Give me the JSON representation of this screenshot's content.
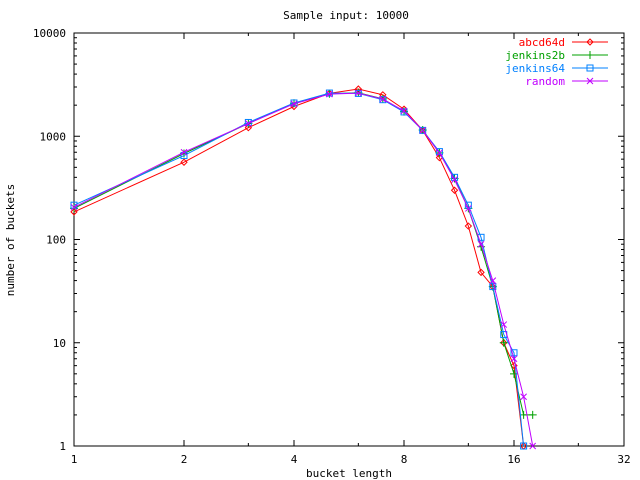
{
  "chart_data": {
    "type": "line",
    "title": "Sample input: 10000",
    "xlabel": "bucket length",
    "ylabel": "number of buckets",
    "x_scale": "log2",
    "y_scale": "log10",
    "xlim": [
      1,
      32
    ],
    "ylim": [
      1,
      10000
    ],
    "x_ticks": [
      1,
      2,
      4,
      8,
      16,
      32
    ],
    "x_tick_labels": [
      "1",
      "2",
      "4",
      "8",
      "16",
      "32"
    ],
    "y_ticks": [
      1,
      10,
      100,
      1000,
      10000
    ],
    "y_tick_labels": [
      "1",
      "10",
      "100",
      "1000",
      "10000"
    ],
    "grid": false,
    "legend_position": "top-right",
    "series": [
      {
        "name": "abcd64d",
        "color": "#ff0000",
        "marker": "diamond",
        "x": [
          1,
          2,
          3,
          4,
          5,
          6,
          7,
          8,
          9,
          10,
          11,
          12,
          13,
          14,
          15,
          16,
          17
        ],
        "y": [
          185,
          560,
          1210,
          1940,
          2600,
          2870,
          2520,
          1830,
          1140,
          620,
          300,
          135,
          48,
          35,
          10,
          6,
          1
        ]
      },
      {
        "name": "jenkins2b",
        "color": "#00a000",
        "marker": "plus",
        "x": [
          1,
          2,
          3,
          4,
          5,
          6,
          7,
          8,
          9,
          10,
          11,
          12,
          13,
          14,
          15,
          16,
          17,
          18
        ],
        "y": [
          200,
          680,
          1330,
          2090,
          2580,
          2640,
          2300,
          1730,
          1150,
          690,
          390,
          200,
          85,
          35,
          10,
          5,
          2,
          2
        ]
      },
      {
        "name": "jenkins64",
        "color": "#0080ff",
        "marker": "square",
        "x": [
          1,
          2,
          3,
          4,
          5,
          6,
          7,
          8,
          9,
          10,
          11,
          12,
          13,
          14,
          15,
          16,
          17
        ],
        "y": [
          215,
          650,
          1360,
          2100,
          2620,
          2600,
          2260,
          1720,
          1140,
          710,
          400,
          215,
          105,
          35,
          12,
          8,
          1
        ]
      },
      {
        "name": "random",
        "color": "#c000ff",
        "marker": "x",
        "x": [
          1,
          2,
          3,
          4,
          5,
          6,
          7,
          8,
          9,
          10,
          11,
          12,
          13,
          14,
          15,
          16,
          17,
          18
        ],
        "y": [
          205,
          700,
          1330,
          2060,
          2560,
          2620,
          2290,
          1760,
          1140,
          690,
          380,
          200,
          90,
          40,
          15,
          7,
          3,
          1
        ]
      }
    ]
  }
}
